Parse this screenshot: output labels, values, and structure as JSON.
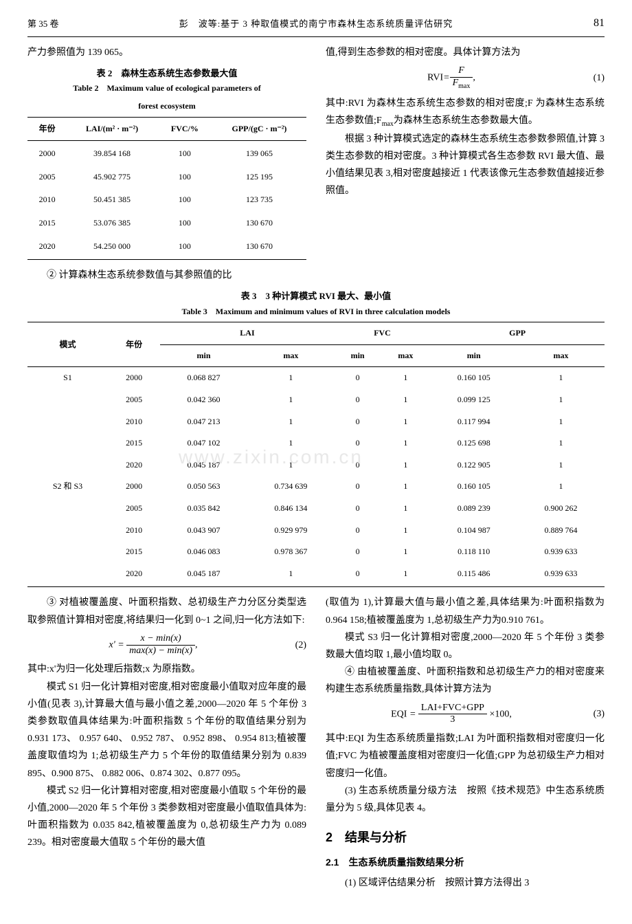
{
  "header": {
    "volume": "第 35 卷",
    "title": "彭　波等:基于 3 种取值模式的南宁市森林生态系统质量评估研究",
    "page": "81"
  },
  "intro_left": "产力参照值为 139 065。",
  "table2": {
    "caption_cn": "表 2　森林生态系统生态参数最大值",
    "caption_en": "Table 2　Maximum value of ecological parameters of",
    "caption_en2": "forest ecosystem",
    "cols": [
      "年份",
      "LAI/(m² · m⁻²)",
      "FVC/%",
      "GPP/(gC · m⁻²)"
    ],
    "rows": [
      [
        "2000",
        "39.854 168",
        "100",
        "139 065"
      ],
      [
        "2005",
        "45.902 775",
        "100",
        "125 195"
      ],
      [
        "2010",
        "50.451 385",
        "100",
        "123 735"
      ],
      [
        "2015",
        "53.076 385",
        "100",
        "130 670"
      ],
      [
        "2020",
        "54.250 000",
        "100",
        "130 670"
      ]
    ]
  },
  "left_para2": "② 计算森林生态系统参数值与其参照值的比",
  "right_para1": "值,得到生态参数的相对密度。具体计算方法为",
  "eq1": {
    "lhs": "RVI=",
    "num": "F",
    "den": "F",
    "den_sub": "max",
    "tail": ",",
    "num_label": "(1)"
  },
  "right_para2": "其中:RVI 为森林生态系统生态参数的相对密度;F 为森林生态系统生态参数值;F",
  "right_para2_sub": "max",
  "right_para2b": "为森林生态系统生态参数最大值。",
  "right_para3": "根据 3 种计算模式选定的森林生态系统生态参数参照值,计算 3 类生态参数的相对密度。3 种计算模式各生态参数 RVI 最大值、最小值结果见表 3,相对密度越接近 1 代表该像元生态参数值越接近参照值。",
  "table3": {
    "caption_cn": "表 3　3 种计算模式 RVI 最大、最小值",
    "caption_en": "Table 3　Maximum and minimum values of RVI in three calculation models",
    "groups": [
      "LAI",
      "FVC",
      "GPP"
    ],
    "sub": [
      "min",
      "max"
    ],
    "left_cols": [
      "模式",
      "年份"
    ],
    "rows": [
      [
        "S1",
        "2000",
        "0.068 827",
        "1",
        "0",
        "1",
        "0.160 105",
        "1"
      ],
      [
        "",
        "2005",
        "0.042 360",
        "1",
        "0",
        "1",
        "0.099 125",
        "1"
      ],
      [
        "",
        "2010",
        "0.047 213",
        "1",
        "0",
        "1",
        "0.117 994",
        "1"
      ],
      [
        "",
        "2015",
        "0.047 102",
        "1",
        "0",
        "1",
        "0.125 698",
        "1"
      ],
      [
        "",
        "2020",
        "0.045 187",
        "1",
        "0",
        "1",
        "0.122 905",
        "1"
      ],
      [
        "S2 和 S3",
        "2000",
        "0.050 563",
        "0.734 639",
        "0",
        "1",
        "0.160 105",
        "1"
      ],
      [
        "",
        "2005",
        "0.035 842",
        "0.846 134",
        "0",
        "1",
        "0.089 239",
        "0.900 262"
      ],
      [
        "",
        "2010",
        "0.043 907",
        "0.929 979",
        "0",
        "1",
        "0.104 987",
        "0.889 764"
      ],
      [
        "",
        "2015",
        "0.046 083",
        "0.978 367",
        "0",
        "1",
        "0.118 110",
        "0.939 633"
      ],
      [
        "",
        "2020",
        "0.045 187",
        "1",
        "0",
        "1",
        "0.115 486",
        "0.939 633"
      ]
    ]
  },
  "watermark": "www.zixin.com.cn",
  "lower_left": {
    "p1": "③ 对植被覆盖度、叶面积指数、总初级生产力分区分类型选取参照值计算相对密度,将结果归一化到 0~1 之间,归一化方法如下:",
    "eq2": {
      "pre": "x' = ",
      "num": "x − min(x)",
      "den": "max(x) − min(x)",
      "tail": ",",
      "label": "(2)"
    },
    "p1b": "其中:x'为归一化处理后指数;x 为原指数。",
    "p2": "模式 S1 归一化计算相对密度,相对密度最小值取对应年度的最小值(见表 3),计算最大值与最小值之差,2000—2020 年 5 个年份 3 类参数取值具体结果为:叶面积指数 5 个年份的取值结果分别为 0.931 173、 0.957 640、 0.952 787、 0.952 898、 0.954 813;植被覆盖度取值均为 1;总初级生产力 5 个年份的取值结果分别为 0.839 895、0.900 875、 0.882 006、0.874 302、0.877 095。",
    "p3": "模式 S2 归一化计算相对密度,相对密度最小值取 5 个年份的最小值,2000—2020 年 5 个年份 3 类参数相对密度最小值取值具体为:叶面积指数为 0.035 842,植被覆盖度为 0,总初级生产力为 0.089 239。相对密度最大值取 5 个年份的最大值"
  },
  "lower_right": {
    "p1": "(取值为 1),计算最大值与最小值之差,具体结果为:叶面积指数为0.964 158;植被覆盖度为 1,总初级生产力为0.910 761。",
    "p2": "模式 S3 归一化计算相对密度,2000—2020 年 5 个年份 3 类参数最大值均取 1,最小值均取 0。",
    "p3": "④ 由植被覆盖度、叶面积指数和总初级生产力的相对密度来构建生态系统质量指数,具体计算方法为",
    "eq3": {
      "pre": "EQI = ",
      "num": "LAI+FVC+GPP",
      "den": "3",
      "tail": " ×100,",
      "label": "(3)"
    },
    "p4": "其中:EQI 为生态系统质量指数;LAI 为叶面积指数相对密度归一化值;FVC 为植被覆盖度相对密度归一化值;GPP 为总初级生产力相对密度归一化值。",
    "p5": "(3) 生态系统质量分级方法　按照《技术规范》中生态系统质量分为 5 级,具体见表 4。",
    "h2": "2　结果与分析",
    "sub": "2.1　生态系统质量指数结果分析",
    "p6": "(1) 区域评估结果分析　按照计算方法得出 3"
  }
}
